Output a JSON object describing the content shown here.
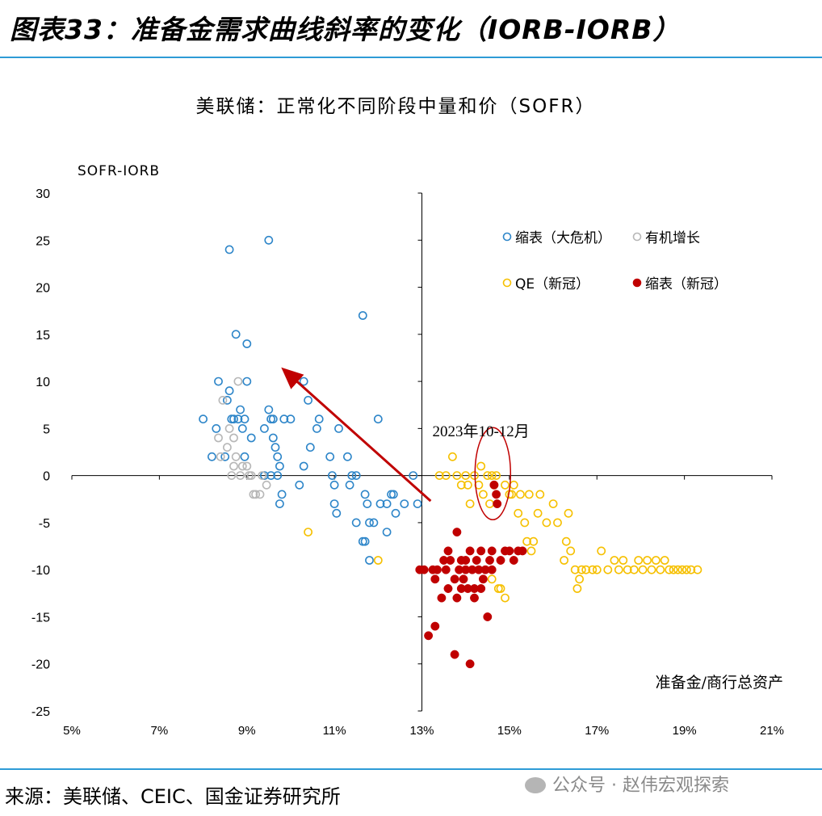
{
  "header": {
    "title": "图表33：准备金需求曲线斜率的变化（IORB-IORB）"
  },
  "footer": {
    "source": "来源：美联储、CEIC、国金证券研究所",
    "watermark": "公众号 · 赵伟宏观探索"
  },
  "chart_data": {
    "type": "scatter",
    "title": "美联储：正常化不同阶段中量和价（SOFR）",
    "xlabel": "准备金/商行总资产",
    "ylabel": "SOFR-IORB",
    "xlim": [
      5,
      21
    ],
    "ylim": [
      -25,
      30
    ],
    "x_ticks": [
      "5%",
      "7%",
      "9%",
      "11%",
      "13%",
      "15%",
      "17%",
      "19%",
      "21%"
    ],
    "y_ticks": [
      "30",
      "25",
      "20",
      "15",
      "10",
      "5",
      "0",
      "-5",
      "-10",
      "-15",
      "-20",
      "-25"
    ],
    "annotation": "2023年10-12月",
    "legend_position": "top-right",
    "series": [
      {
        "name": "缩表（大危机）",
        "color": "#2e86c9",
        "filled": false,
        "points": [
          [
            8.0,
            6
          ],
          [
            8.2,
            2
          ],
          [
            8.3,
            5
          ],
          [
            8.35,
            10
          ],
          [
            8.5,
            2
          ],
          [
            8.55,
            8
          ],
          [
            8.6,
            24
          ],
          [
            8.6,
            9
          ],
          [
            8.65,
            6
          ],
          [
            8.7,
            6
          ],
          [
            8.75,
            15
          ],
          [
            8.8,
            6
          ],
          [
            8.85,
            7
          ],
          [
            8.9,
            5
          ],
          [
            8.95,
            2
          ],
          [
            9.0,
            10
          ],
          [
            9.0,
            14
          ],
          [
            8.95,
            6
          ],
          [
            9.1,
            4
          ],
          [
            9.4,
            5
          ],
          [
            9.5,
            7
          ],
          [
            9.5,
            25
          ],
          [
            9.6,
            6
          ],
          [
            9.6,
            4
          ],
          [
            9.65,
            3
          ],
          [
            9.7,
            2
          ],
          [
            9.7,
            0
          ],
          [
            9.75,
            1
          ],
          [
            9.8,
            -2
          ],
          [
            9.85,
            6
          ],
          [
            9.4,
            0
          ],
          [
            9.55,
            0
          ],
          [
            9.55,
            6
          ],
          [
            9.75,
            -3
          ],
          [
            10.0,
            6
          ],
          [
            10.2,
            -1
          ],
          [
            10.3,
            10
          ],
          [
            10.3,
            1
          ],
          [
            10.4,
            8
          ],
          [
            10.45,
            3
          ],
          [
            10.6,
            5
          ],
          [
            10.65,
            6
          ],
          [
            10.9,
            2
          ],
          [
            10.95,
            0
          ],
          [
            11.0,
            -1
          ],
          [
            11.0,
            -3
          ],
          [
            11.05,
            -4
          ],
          [
            11.1,
            5
          ],
          [
            11.3,
            2
          ],
          [
            11.35,
            -1
          ],
          [
            11.4,
            0
          ],
          [
            11.5,
            0
          ],
          [
            11.5,
            -5
          ],
          [
            11.65,
            17
          ],
          [
            11.7,
            -2
          ],
          [
            11.65,
            -7
          ],
          [
            11.7,
            -7
          ],
          [
            11.75,
            -3
          ],
          [
            11.8,
            -9
          ],
          [
            11.8,
            -5
          ],
          [
            11.9,
            -5
          ],
          [
            12.0,
            6
          ],
          [
            12.05,
            -3
          ],
          [
            12.2,
            -3
          ],
          [
            12.2,
            -6
          ],
          [
            12.3,
            -2
          ],
          [
            12.35,
            -2
          ],
          [
            12.4,
            -4
          ],
          [
            12.6,
            -3
          ],
          [
            12.8,
            0
          ],
          [
            12.9,
            -3
          ]
        ]
      },
      {
        "name": "有机增长",
        "color": "#b7b7b7",
        "filled": false,
        "points": [
          [
            8.35,
            4
          ],
          [
            8.4,
            2
          ],
          [
            8.45,
            8
          ],
          [
            8.55,
            3
          ],
          [
            8.6,
            5
          ],
          [
            8.65,
            0
          ],
          [
            8.7,
            1
          ],
          [
            8.7,
            4
          ],
          [
            8.75,
            2
          ],
          [
            8.8,
            10
          ],
          [
            8.85,
            0
          ],
          [
            8.9,
            1
          ],
          [
            9.0,
            1
          ],
          [
            9.05,
            0
          ],
          [
            9.1,
            0
          ],
          [
            9.15,
            -2
          ],
          [
            9.2,
            -2
          ],
          [
            9.3,
            -2
          ],
          [
            9.35,
            0
          ],
          [
            9.45,
            -1
          ]
        ]
      },
      {
        "name": "QE（新冠）",
        "color": "#f6c000",
        "filled": false,
        "points": [
          [
            10.4,
            -6
          ],
          [
            12.0,
            -9
          ],
          [
            13.4,
            0
          ],
          [
            13.55,
            0
          ],
          [
            13.7,
            2
          ],
          [
            13.8,
            0
          ],
          [
            13.9,
            -1
          ],
          [
            14.0,
            0
          ],
          [
            14.05,
            -1
          ],
          [
            14.1,
            -3
          ],
          [
            14.2,
            0
          ],
          [
            14.3,
            -1
          ],
          [
            14.35,
            1
          ],
          [
            14.4,
            -2
          ],
          [
            14.5,
            0
          ],
          [
            14.55,
            -3
          ],
          [
            14.6,
            0
          ],
          [
            14.65,
            -1
          ],
          [
            14.7,
            0
          ],
          [
            14.9,
            -1
          ],
          [
            15.0,
            -2
          ],
          [
            15.05,
            -2
          ],
          [
            15.1,
            -1
          ],
          [
            15.2,
            -4
          ],
          [
            15.25,
            -2
          ],
          [
            15.35,
            -5
          ],
          [
            15.4,
            -7
          ],
          [
            15.45,
            -2
          ],
          [
            15.5,
            -8
          ],
          [
            15.55,
            -7
          ],
          [
            15.65,
            -4
          ],
          [
            15.7,
            -2
          ],
          [
            15.85,
            -5
          ],
          [
            16.0,
            -3
          ],
          [
            16.1,
            -5
          ],
          [
            16.25,
            -9
          ],
          [
            16.3,
            -7
          ],
          [
            16.35,
            -4
          ],
          [
            16.4,
            -8
          ],
          [
            16.5,
            -10
          ],
          [
            16.55,
            -12
          ],
          [
            16.6,
            -11
          ],
          [
            16.65,
            -10
          ],
          [
            16.75,
            -10
          ],
          [
            16.9,
            -10
          ],
          [
            17.0,
            -10
          ],
          [
            17.1,
            -8
          ],
          [
            17.25,
            -10
          ],
          [
            17.4,
            -9
          ],
          [
            17.5,
            -10
          ],
          [
            17.6,
            -9
          ],
          [
            17.7,
            -10
          ],
          [
            17.85,
            -10
          ],
          [
            17.95,
            -9
          ],
          [
            18.05,
            -10
          ],
          [
            18.15,
            -9
          ],
          [
            18.25,
            -10
          ],
          [
            18.35,
            -9
          ],
          [
            18.45,
            -10
          ],
          [
            18.55,
            -9
          ],
          [
            18.65,
            -10
          ],
          [
            18.75,
            -10
          ],
          [
            18.85,
            -10
          ],
          [
            18.95,
            -10
          ],
          [
            19.05,
            -10
          ],
          [
            19.15,
            -10
          ],
          [
            19.3,
            -10
          ],
          [
            14.6,
            -11
          ],
          [
            14.8,
            -12
          ],
          [
            14.9,
            -13
          ],
          [
            14.75,
            -12
          ]
        ]
      },
      {
        "name": "缩表（新冠）",
        "color": "#c00000",
        "filled": true,
        "points": [
          [
            12.95,
            -10
          ],
          [
            13.05,
            -10
          ],
          [
            13.15,
            -17
          ],
          [
            13.25,
            -10
          ],
          [
            13.3,
            -16
          ],
          [
            13.35,
            -10
          ],
          [
            13.45,
            -13
          ],
          [
            13.55,
            -10
          ],
          [
            13.6,
            -12
          ],
          [
            13.65,
            -9
          ],
          [
            13.75,
            -11
          ],
          [
            13.75,
            -19
          ],
          [
            13.8,
            -13
          ],
          [
            13.85,
            -10
          ],
          [
            13.9,
            -9
          ],
          [
            13.95,
            -11
          ],
          [
            14.0,
            -10
          ],
          [
            14.05,
            -12
          ],
          [
            14.1,
            -20
          ],
          [
            14.15,
            -10
          ],
          [
            14.2,
            -13
          ],
          [
            14.25,
            -9
          ],
          [
            14.3,
            -10
          ],
          [
            14.35,
            -12
          ],
          [
            14.4,
            -11
          ],
          [
            14.45,
            -10
          ],
          [
            14.5,
            -15
          ],
          [
            14.55,
            -9
          ],
          [
            14.6,
            -10
          ],
          [
            14.65,
            -1
          ],
          [
            14.7,
            -2
          ],
          [
            14.72,
            -3
          ],
          [
            14.8,
            -9
          ],
          [
            14.9,
            -8
          ],
          [
            15.0,
            -8
          ],
          [
            15.1,
            -9
          ],
          [
            15.2,
            -8
          ],
          [
            15.3,
            -8
          ],
          [
            13.6,
            -8
          ],
          [
            13.8,
            -6
          ],
          [
            14.1,
            -8
          ],
          [
            14.35,
            -8
          ],
          [
            14.6,
            -8
          ],
          [
            13.5,
            -9
          ],
          [
            13.3,
            -11
          ],
          [
            14.2,
            -12
          ],
          [
            13.9,
            -12
          ],
          [
            14.0,
            -9
          ]
        ]
      }
    ]
  }
}
